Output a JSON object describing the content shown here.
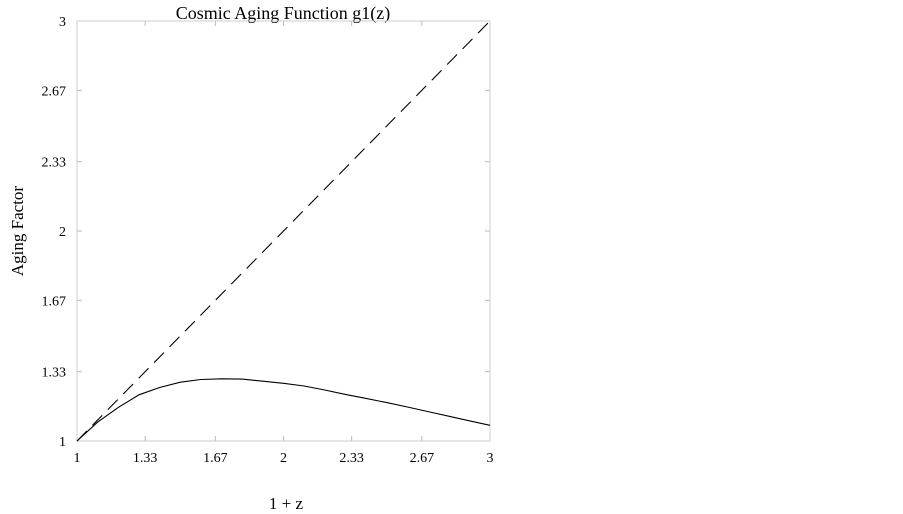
{
  "chart_data": {
    "type": "line",
    "title": "Cosmic Aging Function g1(z)",
    "xlabel": "1 + z",
    "ylabel": "Aging Factor",
    "xlim": [
      1,
      3
    ],
    "ylim": [
      1,
      3
    ],
    "xticks": [
      {
        "value": 1,
        "label": "1"
      },
      {
        "value": 1.33,
        "label": "1.33"
      },
      {
        "value": 1.67,
        "label": "1.67"
      },
      {
        "value": 2,
        "label": "2"
      },
      {
        "value": 2.33,
        "label": "2.33"
      },
      {
        "value": 2.67,
        "label": "2.67"
      },
      {
        "value": 3,
        "label": "3"
      }
    ],
    "yticks": [
      {
        "value": 1,
        "label": "1"
      },
      {
        "value": 1.33,
        "label": "1.33"
      },
      {
        "value": 1.67,
        "label": "1.67"
      },
      {
        "value": 2,
        "label": "2"
      },
      {
        "value": 2.33,
        "label": "2.33"
      },
      {
        "value": 2.67,
        "label": "2.67"
      },
      {
        "value": 3,
        "label": "3"
      }
    ],
    "grid": false,
    "series": [
      {
        "style": "solid",
        "color": "#000000",
        "x": [
          1.0,
          1.1,
          1.2,
          1.3,
          1.4,
          1.5,
          1.6,
          1.7,
          1.8,
          1.9,
          2.0,
          2.1,
          2.2,
          2.3,
          2.4,
          2.5,
          2.6,
          2.7,
          2.8,
          2.9,
          3.0
        ],
        "y": [
          1.0,
          1.09,
          1.16,
          1.22,
          1.255,
          1.28,
          1.293,
          1.296,
          1.295,
          1.285,
          1.275,
          1.262,
          1.243,
          1.222,
          1.203,
          1.183,
          1.162,
          1.14,
          1.118,
          1.096,
          1.075
        ]
      },
      {
        "style": "dashed",
        "color": "#000000",
        "x": [
          1,
          3
        ],
        "y": [
          1,
          3
        ]
      }
    ]
  }
}
